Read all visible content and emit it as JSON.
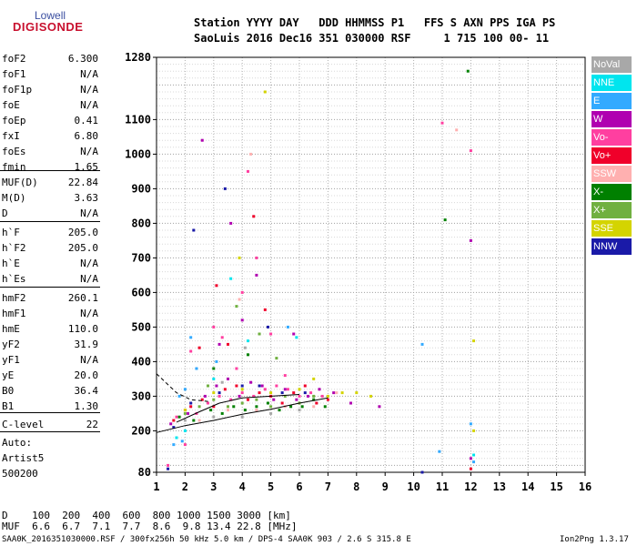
{
  "logo": {
    "line1": "Lowell",
    "line2": "DIGISONDE"
  },
  "header": {
    "line1": "Station YYYY DAY   DDD HHMMSS P1   FFS S AXN PPS IGA PS",
    "line2": "SaoLuis 2016 Dec16 351 030000 RSF     1 715 100 00- 11"
  },
  "params": [
    {
      "name": "foF2",
      "value": "6.300"
    },
    {
      "name": "foF1",
      "value": "N/A"
    },
    {
      "name": "foF1p",
      "value": "N/A"
    },
    {
      "name": "foE",
      "value": "N/A"
    },
    {
      "name": "foEp",
      "value": "0.41"
    },
    {
      "name": "fxI",
      "value": "6.80"
    },
    {
      "name": "foEs",
      "value": "N/A"
    },
    {
      "name": "fmin",
      "value": "1.65"
    },
    {
      "name": "MUF(D)",
      "value": "22.84"
    },
    {
      "name": "M(D)",
      "value": "3.63"
    },
    {
      "name": "D",
      "value": "N/A"
    },
    {
      "name": "h`F",
      "value": "205.0"
    },
    {
      "name": "h`F2",
      "value": "205.0"
    },
    {
      "name": "h`E",
      "value": "N/A"
    },
    {
      "name": "h`Es",
      "value": "N/A"
    },
    {
      "name": "hmF2",
      "value": "260.1"
    },
    {
      "name": "hmF1",
      "value": "N/A"
    },
    {
      "name": "hmE",
      "value": "110.0"
    },
    {
      "name": "yF2",
      "value": "31.9"
    },
    {
      "name": "yF1",
      "value": "N/A"
    },
    {
      "name": "yE",
      "value": "20.0"
    },
    {
      "name": "B0",
      "value": "36.4"
    },
    {
      "name": "B1",
      "value": "1.30"
    },
    {
      "name": "C-level",
      "value": "22"
    }
  ],
  "scaling": {
    "line1": "Auto:",
    "line2": "Artist5",
    "line3": "500200"
  },
  "legend": [
    {
      "label": "NoVal",
      "color": "#a8a8a8"
    },
    {
      "label": "NNE",
      "color": "#00e5ee"
    },
    {
      "label": "E",
      "color": "#33aaff"
    },
    {
      "label": "W",
      "color": "#b000b0"
    },
    {
      "label": "Vo-",
      "color": "#ff3fa0"
    },
    {
      "label": "Vo+",
      "color": "#f0002a"
    },
    {
      "label": "SSW",
      "color": "#ffb0b0"
    },
    {
      "label": "X-",
      "color": "#008000"
    },
    {
      "label": "X+",
      "color": "#70b040"
    },
    {
      "label": "SSE",
      "color": "#d4d400"
    },
    {
      "label": "NNW",
      "color": "#1a1aa8"
    }
  ],
  "chart_data": {
    "type": "scatter",
    "title": "",
    "xlabel": "",
    "ylabel": "",
    "xlim": [
      1,
      16
    ],
    "ylim": [
      80,
      1280
    ],
    "x_ticks": [
      1,
      2,
      3,
      4,
      5,
      6,
      7,
      8,
      9,
      10,
      11,
      12,
      13,
      14,
      15,
      16
    ],
    "y_ticks": [
      80,
      200,
      300,
      400,
      500,
      600,
      700,
      800,
      900,
      1000,
      1100,
      1280
    ],
    "grid": true,
    "series": [
      {
        "name": "Vo-",
        "color": "#ff3fa0",
        "points": [
          [
            1.7,
            240
          ],
          [
            2.0,
            260
          ],
          [
            2.4,
            250
          ],
          [
            2.8,
            280
          ],
          [
            3.2,
            300
          ],
          [
            3.6,
            290
          ],
          [
            4.0,
            310
          ],
          [
            4.4,
            300
          ],
          [
            4.8,
            320
          ],
          [
            5.2,
            330
          ],
          [
            5.6,
            320
          ],
          [
            6.0,
            300
          ],
          [
            6.4,
            310
          ],
          [
            6.8,
            300
          ],
          [
            3.0,
            500
          ],
          [
            4.0,
            600
          ],
          [
            4.5,
            700
          ],
          [
            1.4,
            100
          ],
          [
            2.0,
            160
          ],
          [
            4.2,
            950
          ],
          [
            12.0,
            1010
          ],
          [
            11.0,
            1090
          ],
          [
            3.3,
            470
          ],
          [
            5.0,
            480
          ],
          [
            2.2,
            430
          ],
          [
            3.8,
            380
          ],
          [
            5.5,
            360
          ]
        ]
      },
      {
        "name": "Vo+",
        "color": "#f0002a",
        "points": [
          [
            1.6,
            230
          ],
          [
            2.2,
            270
          ],
          [
            2.6,
            290
          ],
          [
            3.0,
            270
          ],
          [
            3.4,
            320
          ],
          [
            3.8,
            330
          ],
          [
            4.2,
            290
          ],
          [
            4.6,
            310
          ],
          [
            5.0,
            300
          ],
          [
            5.4,
            280
          ],
          [
            5.8,
            310
          ],
          [
            6.2,
            330
          ],
          [
            6.6,
            280
          ],
          [
            7.0,
            290
          ],
          [
            3.5,
            450
          ],
          [
            4.8,
            550
          ],
          [
            2.5,
            440
          ],
          [
            12.0,
            90
          ],
          [
            3.1,
            620
          ],
          [
            4.4,
            820
          ]
        ]
      },
      {
        "name": "W",
        "color": "#b000b0",
        "points": [
          [
            1.5,
            220
          ],
          [
            2.1,
            250
          ],
          [
            2.7,
            300
          ],
          [
            3.1,
            330
          ],
          [
            3.5,
            350
          ],
          [
            3.9,
            300
          ],
          [
            4.3,
            340
          ],
          [
            4.7,
            330
          ],
          [
            5.1,
            290
          ],
          [
            5.5,
            320
          ],
          [
            5.9,
            290
          ],
          [
            6.3,
            300
          ],
          [
            6.7,
            320
          ],
          [
            7.2,
            310
          ],
          [
            7.8,
            280
          ],
          [
            8.8,
            270
          ],
          [
            4.0,
            520
          ],
          [
            3.2,
            450
          ],
          [
            2.6,
            1040
          ],
          [
            12.0,
            750
          ],
          [
            12.0,
            120
          ],
          [
            5.8,
            480
          ],
          [
            4.5,
            650
          ],
          [
            3.6,
            800
          ]
        ]
      },
      {
        "name": "X-",
        "color": "#008000",
        "points": [
          [
            1.8,
            240
          ],
          [
            2.3,
            230
          ],
          [
            2.9,
            260
          ],
          [
            3.3,
            250
          ],
          [
            3.7,
            270
          ],
          [
            4.1,
            260
          ],
          [
            4.5,
            270
          ],
          [
            4.9,
            280
          ],
          [
            5.3,
            260
          ],
          [
            5.7,
            270
          ],
          [
            6.1,
            270
          ],
          [
            6.5,
            290
          ],
          [
            6.9,
            270
          ],
          [
            11.1,
            810
          ],
          [
            11.9,
            1240
          ],
          [
            4.2,
            420
          ],
          [
            3.0,
            380
          ]
        ]
      },
      {
        "name": "X+",
        "color": "#70b040",
        "points": [
          [
            2.0,
            250
          ],
          [
            2.5,
            270
          ],
          [
            3.0,
            290
          ],
          [
            3.5,
            270
          ],
          [
            4.0,
            280
          ],
          [
            4.5,
            290
          ],
          [
            5.0,
            270
          ],
          [
            5.5,
            300
          ],
          [
            6.0,
            280
          ],
          [
            6.5,
            300
          ],
          [
            3.8,
            560
          ],
          [
            4.6,
            480
          ],
          [
            5.2,
            410
          ],
          [
            2.8,
            330
          ]
        ]
      },
      {
        "name": "E",
        "color": "#33aaff",
        "points": [
          [
            1.6,
            160
          ],
          [
            1.9,
            170
          ],
          [
            2.0,
            320
          ],
          [
            2.4,
            380
          ],
          [
            3.1,
            400
          ],
          [
            5.6,
            500
          ],
          [
            10.3,
            450
          ],
          [
            12.0,
            220
          ],
          [
            12.1,
            110
          ],
          [
            10.9,
            140
          ],
          [
            1.8,
            300
          ],
          [
            2.2,
            470
          ]
        ]
      },
      {
        "name": "NNE",
        "color": "#00e5ee",
        "points": [
          [
            1.7,
            180
          ],
          [
            2.0,
            200
          ],
          [
            3.0,
            350
          ],
          [
            4.2,
            460
          ],
          [
            3.6,
            640
          ],
          [
            12.1,
            130
          ],
          [
            5.9,
            470
          ]
        ]
      },
      {
        "name": "SSE",
        "color": "#d4d400",
        "points": [
          [
            2.0,
            260
          ],
          [
            3.0,
            310
          ],
          [
            4.0,
            320
          ],
          [
            5.0,
            310
          ],
          [
            6.0,
            320
          ],
          [
            7.0,
            300
          ],
          [
            7.5,
            310
          ],
          [
            8.0,
            310
          ],
          [
            8.5,
            300
          ],
          [
            12.1,
            200
          ],
          [
            12.1,
            460
          ],
          [
            4.8,
            1180
          ],
          [
            3.9,
            700
          ],
          [
            6.5,
            350
          ]
        ]
      },
      {
        "name": "NNW",
        "color": "#1a1aa8",
        "points": [
          [
            1.6,
            210
          ],
          [
            2.2,
            280
          ],
          [
            3.2,
            310
          ],
          [
            4.0,
            330
          ],
          [
            4.6,
            330
          ],
          [
            5.4,
            310
          ],
          [
            6.2,
            310
          ],
          [
            10.3,
            80
          ],
          [
            3.4,
            900
          ],
          [
            4.9,
            500
          ],
          [
            2.3,
            780
          ],
          [
            1.4,
            90
          ]
        ]
      },
      {
        "name": "SSW",
        "color": "#ffb0b0",
        "points": [
          [
            2.5,
            230
          ],
          [
            3.5,
            260
          ],
          [
            4.5,
            260
          ],
          [
            5.5,
            270
          ],
          [
            6.5,
            270
          ],
          [
            7.3,
            310
          ],
          [
            11.5,
            1070
          ],
          [
            4.3,
            1000
          ],
          [
            3.9,
            580
          ]
        ]
      },
      {
        "name": "NoVal",
        "color": "#a8a8a8",
        "points": [
          [
            2.0,
            230
          ],
          [
            3.0,
            240
          ],
          [
            4.0,
            240
          ],
          [
            5.0,
            250
          ],
          [
            6.0,
            260
          ],
          [
            4.1,
            440
          ],
          [
            3.3,
            340
          ]
        ]
      }
    ],
    "trace_lines": [
      {
        "name": "lower-trace",
        "points": [
          [
            1.0,
            195
          ],
          [
            2.0,
            215
          ],
          [
            3.0,
            230
          ],
          [
            4.0,
            248
          ],
          [
            5.0,
            262
          ],
          [
            6.0,
            280
          ],
          [
            7.0,
            295
          ]
        ]
      },
      {
        "name": "upper-trace",
        "points": [
          [
            1.7,
            225
          ],
          [
            2.5,
            255
          ],
          [
            3.2,
            280
          ],
          [
            4.0,
            295
          ],
          [
            5.0,
            300
          ],
          [
            6.0,
            305
          ]
        ]
      },
      {
        "name": "dashed-trace",
        "points": [
          [
            1.0,
            365
          ],
          [
            1.7,
            310
          ],
          [
            2.2,
            290
          ],
          [
            2.8,
            285
          ]
        ]
      }
    ]
  },
  "dtable": {
    "line1": "D    100  200  400  600  800 1000 1500 3000 [km]",
    "line2": "MUF  6.6  6.7  7.1  7.7  8.6  9.8 13.4 22.8 [MHz]"
  },
  "footer": {
    "left": "SAA0K_2016351030000.RSF / 300fx256h 50 kHz 5.0 km / DPS-4 SAA0K 903 / 2.6 S 315.8 E",
    "right": "Ion2Png 1.3.17"
  }
}
